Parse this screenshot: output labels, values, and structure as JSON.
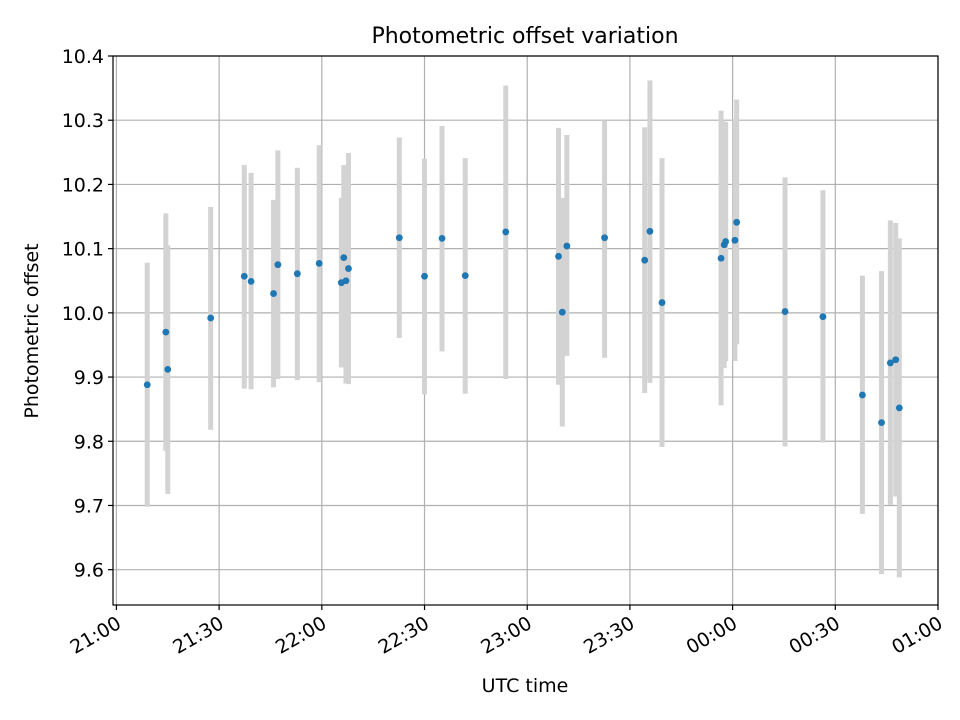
{
  "chart_data": {
    "type": "scatter",
    "title": "Photometric offset variation",
    "xlabel": "UTC time",
    "ylabel": "Photometric offset",
    "x_unit": "UTC clock time (HH:MM), spanning midnight",
    "xlim": [
      "20:59",
      "01:00"
    ],
    "ylim": [
      9.545,
      10.4
    ],
    "x_ticks": [
      "21:00",
      "21:30",
      "22:00",
      "22:30",
      "23:00",
      "23:30",
      "00:00",
      "00:30",
      "01:00"
    ],
    "y_ticks": [
      "9.6",
      "9.7",
      "9.8",
      "9.9",
      "10.0",
      "10.1",
      "10.2",
      "10.3",
      "10.4"
    ],
    "x_tick_label_rotation": "30 degrees",
    "grid": true,
    "legend": "none",
    "colors": {
      "points": "#1f77b4",
      "errorbars": "#d3d3d3",
      "grid": "#b0b0b0"
    },
    "points": [
      {
        "x": "21:09:00",
        "y": 9.888,
        "ylow": 9.698,
        "yhigh": 10.078
      },
      {
        "x": "21:14:26",
        "y": 9.97,
        "ylow": 9.785,
        "yhigh": 10.155
      },
      {
        "x": "21:15:00",
        "y": 9.912,
        "ylow": 9.718,
        "yhigh": 10.105
      },
      {
        "x": "21:27:32",
        "y": 9.992,
        "ylow": 9.818,
        "yhigh": 10.165
      },
      {
        "x": "21:37:21",
        "y": 10.057,
        "ylow": 9.882,
        "yhigh": 10.23
      },
      {
        "x": "21:39:20",
        "y": 10.049,
        "ylow": 9.881,
        "yhigh": 10.218
      },
      {
        "x": "21:45:54",
        "y": 10.03,
        "ylow": 9.884,
        "yhigh": 10.176
      },
      {
        "x": "21:47:10",
        "y": 10.075,
        "ylow": 9.897,
        "yhigh": 10.253
      },
      {
        "x": "21:52:51",
        "y": 10.061,
        "ylow": 9.895,
        "yhigh": 10.226
      },
      {
        "x": "21:59:14",
        "y": 10.077,
        "ylow": 9.892,
        "yhigh": 10.261
      },
      {
        "x": "22:05:42",
        "y": 10.047,
        "ylow": 9.915,
        "yhigh": 10.179
      },
      {
        "x": "22:06:25",
        "y": 10.086,
        "ylow": 9.94,
        "yhigh": 10.23
      },
      {
        "x": "22:07:03",
        "y": 10.05,
        "ylow": 9.89,
        "yhigh": 10.21
      },
      {
        "x": "22:07:47",
        "y": 10.069,
        "ylow": 9.889,
        "yhigh": 10.249
      },
      {
        "x": "22:22:38",
        "y": 10.117,
        "ylow": 9.961,
        "yhigh": 10.273
      },
      {
        "x": "22:30:00",
        "y": 10.057,
        "ylow": 9.873,
        "yhigh": 10.24
      },
      {
        "x": "22:35:07",
        "y": 10.116,
        "ylow": 9.94,
        "yhigh": 10.291
      },
      {
        "x": "22:41:54",
        "y": 10.058,
        "ylow": 9.874,
        "yhigh": 10.241
      },
      {
        "x": "22:53:44",
        "y": 10.126,
        "ylow": 9.897,
        "yhigh": 10.354
      },
      {
        "x": "23:09:09",
        "y": 10.088,
        "ylow": 9.888,
        "yhigh": 10.288
      },
      {
        "x": "23:10:15",
        "y": 10.001,
        "ylow": 9.823,
        "yhigh": 10.179
      },
      {
        "x": "23:11:35",
        "y": 10.104,
        "ylow": 9.933,
        "yhigh": 10.277
      },
      {
        "x": "23:22:36",
        "y": 10.117,
        "ylow": 9.93,
        "yhigh": 10.3
      },
      {
        "x": "23:34:19",
        "y": 10.082,
        "ylow": 9.875,
        "yhigh": 10.289
      },
      {
        "x": "23:35:51",
        "y": 10.127,
        "ylow": 9.891,
        "yhigh": 10.362
      },
      {
        "x": "23:39:23",
        "y": 10.016,
        "ylow": 9.791,
        "yhigh": 10.241
      },
      {
        "x": "23:56:38",
        "y": 10.085,
        "ylow": 9.856,
        "yhigh": 10.315
      },
      {
        "x": "23:57:33",
        "y": 10.106,
        "ylow": 9.914,
        "yhigh": 10.298
      },
      {
        "x": "23:57:58",
        "y": 10.111,
        "ylow": 9.925,
        "yhigh": 10.297
      },
      {
        "x": "00:00:40",
        "y": 10.113,
        "ylow": 9.925,
        "yhigh": 10.302
      },
      {
        "x": "00:01:11",
        "y": 10.141,
        "ylow": 9.951,
        "yhigh": 10.332
      },
      {
        "x": "00:15:19",
        "y": 10.002,
        "ylow": 9.792,
        "yhigh": 10.211
      },
      {
        "x": "00:26:23",
        "y": 9.994,
        "ylow": 9.798,
        "yhigh": 10.191
      },
      {
        "x": "00:37:55",
        "y": 9.872,
        "ylow": 9.687,
        "yhigh": 10.058
      },
      {
        "x": "00:43:30",
        "y": 9.829,
        "ylow": 9.593,
        "yhigh": 10.065
      },
      {
        "x": "00:46:05",
        "y": 9.922,
        "ylow": 9.701,
        "yhigh": 10.144
      },
      {
        "x": "00:47:39",
        "y": 9.927,
        "ylow": 9.714,
        "yhigh": 10.14
      },
      {
        "x": "00:48:42",
        "y": 9.852,
        "ylow": 9.588,
        "yhigh": 10.116
      }
    ]
  }
}
